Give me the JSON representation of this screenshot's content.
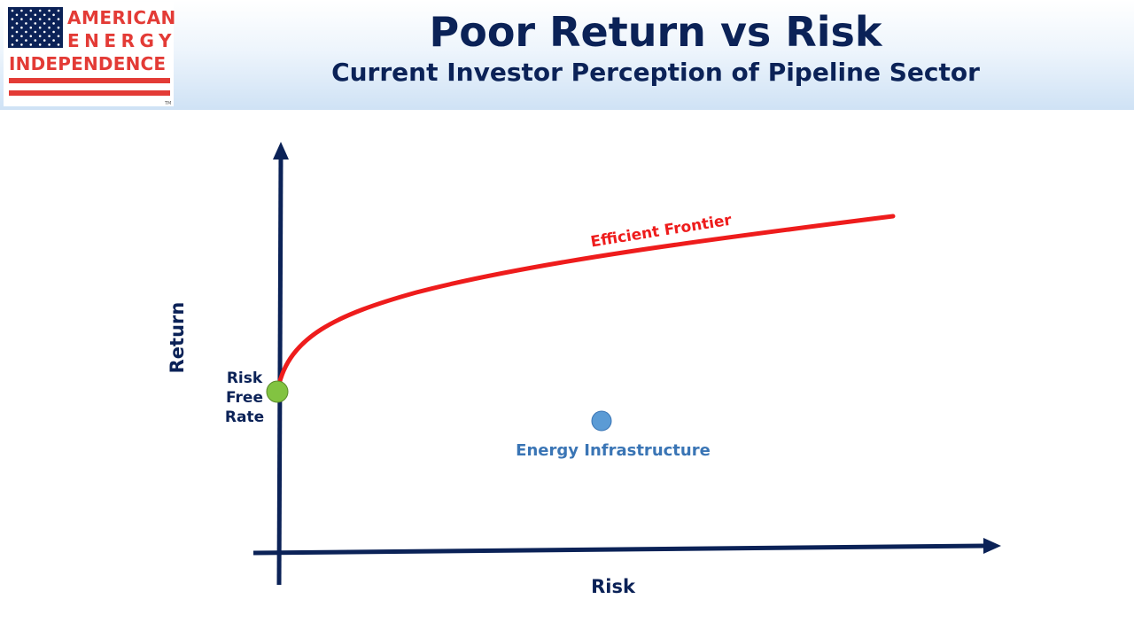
{
  "header": {
    "title": "Poor Return vs Risk",
    "subtitle": "Current Investor Perception of Pipeline Sector"
  },
  "logo": {
    "line1": "AMERICAN",
    "line2": "ENERGY",
    "line3": "INDEPENDENCE",
    "trademark": "TM",
    "accent_color": "#e33b36",
    "flag_blue": "#0b2257"
  },
  "diagram": {
    "x_axis_label": "Risk",
    "y_axis_label": "Return",
    "frontier_label": "Efficient Frontier",
    "risk_free_label": [
      "Risk",
      "Free",
      "Rate"
    ],
    "asset_label": "Energy Infrastructure",
    "colors": {
      "axis": "#0b2257",
      "frontier": "#ee1c1c",
      "risk_free_point": "#82c341",
      "asset_point": "#5b9bd5",
      "asset_label": "#3a75b5"
    }
  }
}
